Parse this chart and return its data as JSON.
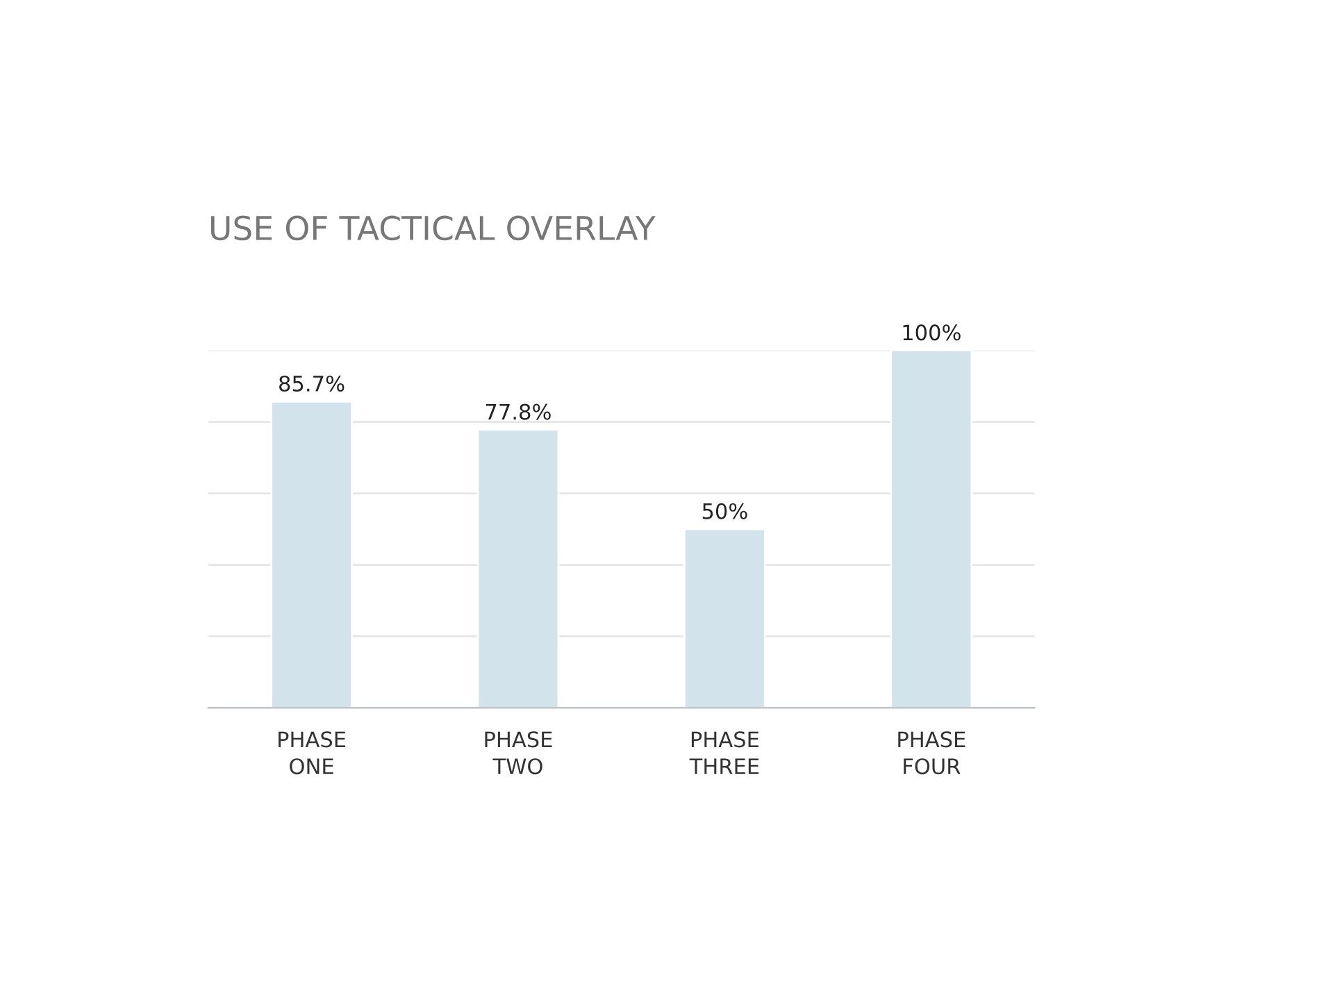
{
  "chart_data": {
    "type": "bar",
    "title": "USE OF TACTICAL OVERLAY",
    "categories": [
      "PHASE\nONE",
      "PHASE\nTWO",
      "PHASE\nTHREE",
      "PHASE\nFOUR"
    ],
    "values": [
      85.7,
      77.8,
      50,
      100
    ],
    "value_labels": [
      "85.7%",
      "77.8%",
      "50%",
      "100%"
    ],
    "color": "#d3e3ec",
    "ylim": [
      0,
      100
    ],
    "yticks": [
      {
        "value": 0,
        "label": null
      },
      {
        "value": 20,
        "label": null
      },
      {
        "value": 40,
        "label": null
      },
      {
        "value": 60,
        "label": null
      },
      {
        "value": 80,
        "label": null
      },
      {
        "value": 100,
        "label": null
      }
    ],
    "tick_labels": "x",
    "grid": "y",
    "legend": false
  }
}
